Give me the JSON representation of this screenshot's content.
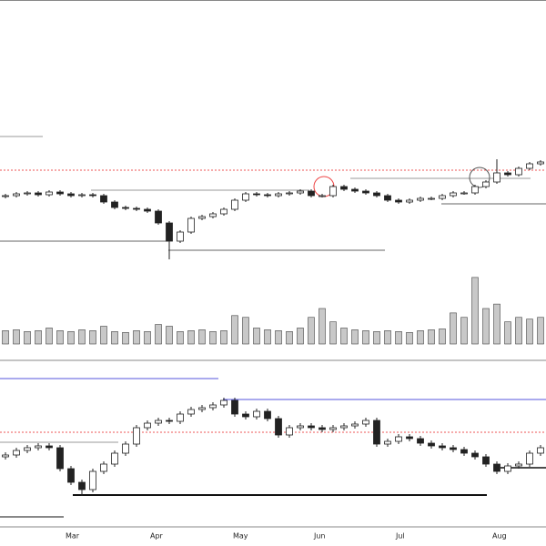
{
  "chart_data": [
    {
      "type": "candlestick",
      "open": [
        84,
        85,
        87,
        88,
        86,
        89,
        87,
        85,
        86,
        85,
        78,
        72,
        71,
        70,
        68,
        55,
        35,
        45,
        60,
        62,
        65,
        70,
        80,
        87,
        86,
        85,
        87,
        88,
        90,
        85,
        85,
        95,
        92,
        90,
        88,
        85,
        80,
        78,
        80,
        82,
        82,
        85,
        88,
        88,
        95,
        100,
        110,
        108,
        115,
        120
      ],
      "high": [
        87,
        89,
        90,
        90,
        91,
        91,
        89,
        88,
        88,
        87,
        80,
        74,
        73,
        72,
        70,
        57,
        47,
        62,
        64,
        67,
        72,
        82,
        89,
        89,
        88,
        89,
        90,
        92,
        92,
        87,
        97,
        97,
        94,
        92,
        90,
        87,
        82,
        82,
        84,
        84,
        87,
        90,
        90,
        97,
        102,
        125,
        112,
        117,
        122,
        124
      ],
      "low": [
        82,
        83,
        85,
        84,
        84,
        85,
        83,
        83,
        83,
        76,
        70,
        69,
        68,
        66,
        53,
        15,
        33,
        43,
        58,
        60,
        63,
        68,
        78,
        84,
        83,
        83,
        85,
        86,
        83,
        83,
        83,
        90,
        88,
        86,
        83,
        78,
        76,
        76,
        78,
        80,
        80,
        83,
        86,
        86,
        93,
        98,
        106,
        106,
        113,
        118
      ],
      "close": [
        85,
        87,
        88,
        86,
        89,
        87,
        85,
        86,
        85,
        78,
        72,
        71,
        70,
        68,
        55,
        35,
        45,
        60,
        62,
        65,
        70,
        80,
        87,
        86,
        85,
        87,
        88,
        90,
        85,
        85,
        95,
        92,
        90,
        88,
        85,
        80,
        78,
        80,
        82,
        82,
        85,
        88,
        88,
        95,
        100,
        110,
        108,
        115,
        120,
        122
      ],
      "ylim": [
        0,
        300
      ]
    },
    {
      "type": "bar",
      "values": [
        15,
        16,
        14,
        15,
        18,
        15,
        14,
        16,
        15,
        20,
        14,
        13,
        15,
        14,
        22,
        20,
        14,
        15,
        16,
        14,
        15,
        32,
        30,
        18,
        16,
        15,
        14,
        18,
        30,
        40,
        25,
        18,
        16,
        15,
        14,
        15,
        14,
        13,
        15,
        16,
        17,
        35,
        30,
        75,
        40,
        45,
        25,
        30,
        28,
        30
      ],
      "color": "#c8c8c8",
      "ylim": [
        0,
        80
      ]
    },
    {
      "type": "candlestick",
      "open": [
        98,
        100,
        105,
        108,
        110,
        108,
        85,
        70,
        62,
        82,
        90,
        102,
        112,
        130,
        135,
        138,
        137,
        145,
        150,
        152,
        155,
        160,
        145,
        142,
        148,
        140,
        122,
        130,
        132,
        130,
        128,
        130,
        132,
        134,
        138,
        112,
        115,
        120,
        118,
        113,
        110,
        108,
        106,
        102,
        98,
        90,
        82,
        88,
        90,
        102
      ],
      "high": [
        103,
        108,
        111,
        113,
        113,
        111,
        88,
        73,
        85,
        93,
        105,
        115,
        133,
        138,
        141,
        141,
        148,
        153,
        155,
        158,
        163,
        163,
        148,
        151,
        151,
        143,
        133,
        135,
        135,
        133,
        133,
        135,
        137,
        141,
        141,
        118,
        123,
        123,
        121,
        116,
        113,
        111,
        109,
        105,
        101,
        93,
        91,
        93,
        105,
        111
      ],
      "low": [
        95,
        97,
        102,
        105,
        105,
        82,
        67,
        55,
        59,
        79,
        87,
        99,
        109,
        127,
        132,
        134,
        134,
        142,
        147,
        149,
        152,
        142,
        139,
        139,
        137,
        119,
        119,
        127,
        127,
        125,
        125,
        127,
        129,
        131,
        109,
        109,
        112,
        115,
        110,
        107,
        105,
        103,
        99,
        95,
        87,
        79,
        79,
        85,
        87,
        99
      ],
      "close": [
        100,
        105,
        108,
        110,
        108,
        85,
        70,
        62,
        82,
        90,
        102,
        112,
        130,
        135,
        138,
        137,
        145,
        150,
        152,
        155,
        160,
        145,
        142,
        148,
        140,
        122,
        130,
        132,
        130,
        128,
        130,
        132,
        134,
        138,
        112,
        115,
        120,
        118,
        113,
        110,
        108,
        106,
        102,
        98,
        90,
        82,
        88,
        90,
        102,
        108
      ],
      "ylim": [
        0,
        200
      ],
      "categories": [
        "Mar",
        "Apr",
        "May",
        "Jun",
        "Jul",
        "Aug"
      ]
    }
  ]
}
